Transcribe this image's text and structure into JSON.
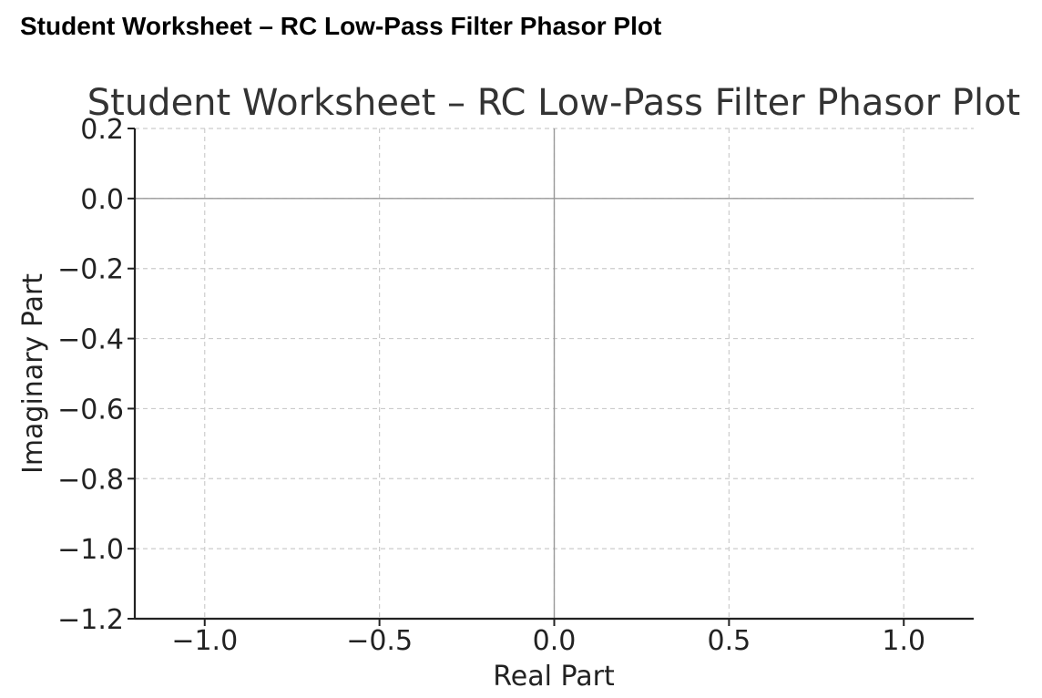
{
  "page": {
    "heading": "Student Worksheet – RC Low-Pass Filter Phasor Plot"
  },
  "chart_data": {
    "type": "scatter",
    "title": "Student Worksheet – RC Low-Pass Filter Phasor Plot",
    "xlabel": "Real Part",
    "ylabel": "Imaginary Part",
    "xlim": [
      -1.2,
      1.2
    ],
    "ylim": [
      -1.2,
      0.2
    ],
    "x_ticks": [
      -1.0,
      -0.5,
      0.0,
      0.5,
      1.0
    ],
    "x_tick_labels": [
      "−1.0",
      "−0.5",
      "0.0",
      "0.5",
      "1.0"
    ],
    "y_ticks": [
      0.2,
      0.0,
      -0.2,
      -0.4,
      -0.6,
      -0.8,
      -1.0,
      -1.2
    ],
    "y_tick_labels": [
      "0.2",
      "0.0",
      "−0.2",
      "−0.4",
      "−0.6",
      "−0.8",
      "−1.0",
      "−1.2"
    ],
    "grid": true,
    "reference_lines": {
      "x": 0,
      "y": 0
    },
    "series": [],
    "colors": {
      "grid": "#cccccc",
      "reference": "#999999",
      "axis": "#222222",
      "text": "#333333"
    }
  }
}
